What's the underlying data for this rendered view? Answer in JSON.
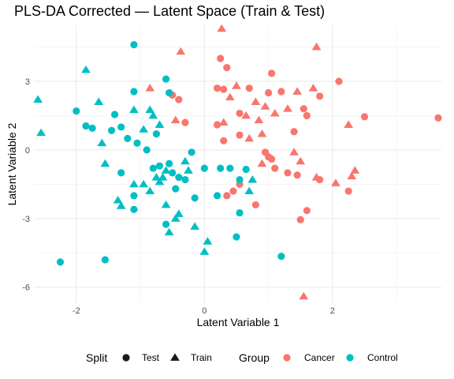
{
  "chart_data": {
    "type": "scatter",
    "title": "PLS-DA Corrected — Latent Space (Train & Test)",
    "xlabel": "Latent Variable 1",
    "ylabel": "Latent Variable 2",
    "xlim": [
      -2.65,
      3.7
    ],
    "ylim": [
      -6.7,
      5.45
    ],
    "x_ticks": [
      -2,
      0,
      2
    ],
    "y_ticks": [
      -6,
      -3,
      0,
      3
    ],
    "grid": true,
    "legend": {
      "position": "bottom",
      "split": {
        "title": "Split",
        "items": [
          {
            "label": "Test",
            "shape": "circle"
          },
          {
            "label": "Train",
            "shape": "triangle"
          }
        ]
      },
      "group": {
        "title": "Group",
        "items": [
          {
            "label": "Cancer",
            "color": "#F8766D"
          },
          {
            "label": "Control",
            "color": "#00BFC4"
          }
        ]
      }
    },
    "colors": {
      "Cancer": "#F8766D",
      "Control": "#00BFC4"
    },
    "points": [
      {
        "x": 0.27,
        "y": 5.3,
        "group": "Cancer",
        "split": "Train"
      },
      {
        "x": -0.37,
        "y": 4.3,
        "group": "Cancer",
        "split": "Train"
      },
      {
        "x": 1.75,
        "y": 4.5,
        "group": "Cancer",
        "split": "Train"
      },
      {
        "x": 0.25,
        "y": 4.0,
        "group": "Cancer",
        "split": "Test"
      },
      {
        "x": 0.35,
        "y": 3.6,
        "group": "Cancer",
        "split": "Test"
      },
      {
        "x": 1.05,
        "y": 3.35,
        "group": "Cancer",
        "split": "Test"
      },
      {
        "x": 2.1,
        "y": 3.0,
        "group": "Cancer",
        "split": "Test"
      },
      {
        "x": -0.85,
        "y": 2.7,
        "group": "Cancer",
        "split": "Train"
      },
      {
        "x": 0.2,
        "y": 2.7,
        "group": "Cancer",
        "split": "Test"
      },
      {
        "x": 0.3,
        "y": 2.65,
        "group": "Cancer",
        "split": "Test"
      },
      {
        "x": 0.5,
        "y": 2.8,
        "group": "Cancer",
        "split": "Train"
      },
      {
        "x": 0.7,
        "y": 2.7,
        "group": "Cancer",
        "split": "Test"
      },
      {
        "x": 1.0,
        "y": 2.5,
        "group": "Cancer",
        "split": "Test"
      },
      {
        "x": 1.2,
        "y": 2.55,
        "group": "Cancer",
        "split": "Test"
      },
      {
        "x": 1.45,
        "y": 2.55,
        "group": "Cancer",
        "split": "Train"
      },
      {
        "x": 1.7,
        "y": 2.7,
        "group": "Cancer",
        "split": "Train"
      },
      {
        "x": 1.8,
        "y": 2.35,
        "group": "Cancer",
        "split": "Test"
      },
      {
        "x": -0.5,
        "y": 2.4,
        "group": "Cancer",
        "split": "Test"
      },
      {
        "x": -0.4,
        "y": 2.2,
        "group": "Cancer",
        "split": "Test"
      },
      {
        "x": 0.4,
        "y": 2.3,
        "group": "Cancer",
        "split": "Train"
      },
      {
        "x": 0.8,
        "y": 2.1,
        "group": "Cancer",
        "split": "Train"
      },
      {
        "x": 0.95,
        "y": 1.9,
        "group": "Cancer",
        "split": "Train"
      },
      {
        "x": 1.1,
        "y": 1.6,
        "group": "Cancer",
        "split": "Train"
      },
      {
        "x": 1.3,
        "y": 1.8,
        "group": "Cancer",
        "split": "Train"
      },
      {
        "x": 1.55,
        "y": 1.8,
        "group": "Cancer",
        "split": "Test"
      },
      {
        "x": 1.6,
        "y": 1.5,
        "group": "Cancer",
        "split": "Test"
      },
      {
        "x": -0.45,
        "y": 1.3,
        "group": "Cancer",
        "split": "Train"
      },
      {
        "x": -0.3,
        "y": 1.2,
        "group": "Cancer",
        "split": "Test"
      },
      {
        "x": 0.2,
        "y": 1.1,
        "group": "Cancer",
        "split": "Test"
      },
      {
        "x": 0.3,
        "y": 1.2,
        "group": "Cancer",
        "split": "Train"
      },
      {
        "x": 0.55,
        "y": 1.6,
        "group": "Cancer",
        "split": "Test"
      },
      {
        "x": 0.65,
        "y": 1.5,
        "group": "Cancer",
        "split": "Train"
      },
      {
        "x": 0.85,
        "y": 1.3,
        "group": "Cancer",
        "split": "Train"
      },
      {
        "x": 1.4,
        "y": 0.8,
        "group": "Cancer",
        "split": "Test"
      },
      {
        "x": 2.25,
        "y": 1.1,
        "group": "Cancer",
        "split": "Train"
      },
      {
        "x": 2.5,
        "y": 1.45,
        "group": "Cancer",
        "split": "Test"
      },
      {
        "x": 3.65,
        "y": 1.4,
        "group": "Cancer",
        "split": "Test"
      },
      {
        "x": 0.3,
        "y": 0.4,
        "group": "Cancer",
        "split": "Test"
      },
      {
        "x": 0.55,
        "y": 0.65,
        "group": "Cancer",
        "split": "Test"
      },
      {
        "x": 0.7,
        "y": 0.5,
        "group": "Cancer",
        "split": "Train"
      },
      {
        "x": 0.9,
        "y": 0.7,
        "group": "Cancer",
        "split": "Train"
      },
      {
        "x": 0.95,
        "y": -0.1,
        "group": "Cancer",
        "split": "Test"
      },
      {
        "x": 1.0,
        "y": -0.3,
        "group": "Cancer",
        "split": "Test"
      },
      {
        "x": 1.05,
        "y": -0.4,
        "group": "Cancer",
        "split": "Test"
      },
      {
        "x": 0.9,
        "y": -0.6,
        "group": "Cancer",
        "split": "Train"
      },
      {
        "x": 1.1,
        "y": -0.8,
        "group": "Cancer",
        "split": "Test"
      },
      {
        "x": 1.4,
        "y": -0.1,
        "group": "Cancer",
        "split": "Train"
      },
      {
        "x": 1.5,
        "y": -0.5,
        "group": "Cancer",
        "split": "Train"
      },
      {
        "x": 1.3,
        "y": -1.0,
        "group": "Cancer",
        "split": "Test"
      },
      {
        "x": 1.45,
        "y": -1.1,
        "group": "Cancer",
        "split": "Test"
      },
      {
        "x": 1.75,
        "y": -1.2,
        "group": "Cancer",
        "split": "Train"
      },
      {
        "x": 1.8,
        "y": -1.3,
        "group": "Cancer",
        "split": "Test"
      },
      {
        "x": 0.55,
        "y": -1.5,
        "group": "Cancer",
        "split": "Test"
      },
      {
        "x": 0.35,
        "y": -2.0,
        "group": "Cancer",
        "split": "Test"
      },
      {
        "x": 0.45,
        "y": -1.8,
        "group": "Cancer",
        "split": "Test"
      },
      {
        "x": 0.8,
        "y": -2.4,
        "group": "Cancer",
        "split": "Test"
      },
      {
        "x": 2.05,
        "y": -1.45,
        "group": "Cancer",
        "split": "Train"
      },
      {
        "x": 2.25,
        "y": -1.8,
        "group": "Cancer",
        "split": "Test"
      },
      {
        "x": 2.3,
        "y": -1.15,
        "group": "Cancer",
        "split": "Train"
      },
      {
        "x": 2.35,
        "y": -0.9,
        "group": "Cancer",
        "split": "Train"
      },
      {
        "x": 1.6,
        "y": -2.65,
        "group": "Cancer",
        "split": "Test"
      },
      {
        "x": 1.5,
        "y": -3.05,
        "group": "Cancer",
        "split": "Test"
      },
      {
        "x": 1.55,
        "y": -6.4,
        "group": "Cancer",
        "split": "Train"
      },
      {
        "x": -1.1,
        "y": 4.6,
        "group": "Control",
        "split": "Test"
      },
      {
        "x": -1.85,
        "y": 3.5,
        "group": "Control",
        "split": "Train"
      },
      {
        "x": -2.6,
        "y": 2.2,
        "group": "Control",
        "split": "Train"
      },
      {
        "x": -2.55,
        "y": 0.75,
        "group": "Control",
        "split": "Train"
      },
      {
        "x": -1.65,
        "y": 2.1,
        "group": "Control",
        "split": "Train"
      },
      {
        "x": -2.0,
        "y": 1.7,
        "group": "Control",
        "split": "Test"
      },
      {
        "x": -1.85,
        "y": 1.05,
        "group": "Control",
        "split": "Test"
      },
      {
        "x": -1.75,
        "y": 0.95,
        "group": "Control",
        "split": "Test"
      },
      {
        "x": -1.45,
        "y": 0.85,
        "group": "Control",
        "split": "Test"
      },
      {
        "x": -1.4,
        "y": 1.55,
        "group": "Control",
        "split": "Test"
      },
      {
        "x": -1.1,
        "y": 2.55,
        "group": "Control",
        "split": "Test"
      },
      {
        "x": -1.1,
        "y": 1.75,
        "group": "Control",
        "split": "Train"
      },
      {
        "x": -0.85,
        "y": 1.75,
        "group": "Control",
        "split": "Train"
      },
      {
        "x": -0.8,
        "y": 1.5,
        "group": "Control",
        "split": "Train"
      },
      {
        "x": -0.6,
        "y": 3.1,
        "group": "Control",
        "split": "Test"
      },
      {
        "x": -0.55,
        "y": 2.5,
        "group": "Control",
        "split": "Test"
      },
      {
        "x": -1.3,
        "y": 1.0,
        "group": "Control",
        "split": "Test"
      },
      {
        "x": -1.2,
        "y": 0.5,
        "group": "Control",
        "split": "Test"
      },
      {
        "x": -1.05,
        "y": 0.3,
        "group": "Control",
        "split": "Test"
      },
      {
        "x": -0.95,
        "y": 0.9,
        "group": "Control",
        "split": "Train"
      },
      {
        "x": -0.75,
        "y": 0.7,
        "group": "Control",
        "split": "Test"
      },
      {
        "x": -0.7,
        "y": 1.1,
        "group": "Control",
        "split": "Train"
      },
      {
        "x": -0.9,
        "y": 0.0,
        "group": "Control",
        "split": "Test"
      },
      {
        "x": -1.6,
        "y": 0.3,
        "group": "Control",
        "split": "Train"
      },
      {
        "x": -1.55,
        "y": -0.6,
        "group": "Control",
        "split": "Train"
      },
      {
        "x": -1.3,
        "y": -1.0,
        "group": "Control",
        "split": "Test"
      },
      {
        "x": -1.1,
        "y": -1.5,
        "group": "Control",
        "split": "Train"
      },
      {
        "x": -0.95,
        "y": -1.5,
        "group": "Control",
        "split": "Train"
      },
      {
        "x": -0.85,
        "y": -1.8,
        "group": "Control",
        "split": "Train"
      },
      {
        "x": -0.8,
        "y": -0.8,
        "group": "Control",
        "split": "Test"
      },
      {
        "x": -0.75,
        "y": -1.2,
        "group": "Control",
        "split": "Train"
      },
      {
        "x": -0.7,
        "y": -1.4,
        "group": "Control",
        "split": "Train"
      },
      {
        "x": -0.7,
        "y": -0.7,
        "group": "Control",
        "split": "Test"
      },
      {
        "x": -0.65,
        "y": -1.2,
        "group": "Control",
        "split": "Train"
      },
      {
        "x": -0.6,
        "y": -0.9,
        "group": "Control",
        "split": "Train"
      },
      {
        "x": -0.55,
        "y": -0.6,
        "group": "Control",
        "split": "Test"
      },
      {
        "x": -0.5,
        "y": -1.0,
        "group": "Control",
        "split": "Test"
      },
      {
        "x": -0.45,
        "y": -1.7,
        "group": "Control",
        "split": "Test"
      },
      {
        "x": -0.4,
        "y": -1.2,
        "group": "Control",
        "split": "Test"
      },
      {
        "x": -0.3,
        "y": -0.5,
        "group": "Control",
        "split": "Train"
      },
      {
        "x": -0.3,
        "y": -1.3,
        "group": "Control",
        "split": "Test"
      },
      {
        "x": -0.25,
        "y": -0.9,
        "group": "Control",
        "split": "Train"
      },
      {
        "x": -0.2,
        "y": -0.1,
        "group": "Control",
        "split": "Test"
      },
      {
        "x": 0.0,
        "y": -0.8,
        "group": "Control",
        "split": "Test"
      },
      {
        "x": 0.25,
        "y": -0.8,
        "group": "Control",
        "split": "Test"
      },
      {
        "x": 0.4,
        "y": -0.8,
        "group": "Control",
        "split": "Test"
      },
      {
        "x": 0.65,
        "y": -0.85,
        "group": "Control",
        "split": "Test"
      },
      {
        "x": 0.55,
        "y": -1.3,
        "group": "Control",
        "split": "Test"
      },
      {
        "x": 0.75,
        "y": -1.3,
        "group": "Control",
        "split": "Train"
      },
      {
        "x": 0.7,
        "y": -1.8,
        "group": "Control",
        "split": "Train"
      },
      {
        "x": -0.15,
        "y": -2.1,
        "group": "Control",
        "split": "Test"
      },
      {
        "x": 0.2,
        "y": -2.0,
        "group": "Control",
        "split": "Test"
      },
      {
        "x": -1.35,
        "y": -2.2,
        "group": "Control",
        "split": "Train"
      },
      {
        "x": -1.3,
        "y": -2.45,
        "group": "Control",
        "split": "Train"
      },
      {
        "x": -1.1,
        "y": -2.0,
        "group": "Control",
        "split": "Test"
      },
      {
        "x": -1.1,
        "y": -2.6,
        "group": "Control",
        "split": "Test"
      },
      {
        "x": -0.6,
        "y": -2.4,
        "group": "Control",
        "split": "Train"
      },
      {
        "x": -0.6,
        "y": -3.25,
        "group": "Control",
        "split": "Test"
      },
      {
        "x": -0.45,
        "y": -3.0,
        "group": "Control",
        "split": "Train"
      },
      {
        "x": -0.4,
        "y": -2.8,
        "group": "Control",
        "split": "Train"
      },
      {
        "x": -0.55,
        "y": -3.6,
        "group": "Control",
        "split": "Train"
      },
      {
        "x": -0.15,
        "y": -3.35,
        "group": "Control",
        "split": "Train"
      },
      {
        "x": 0.55,
        "y": -2.75,
        "group": "Control",
        "split": "Test"
      },
      {
        "x": 0.05,
        "y": -4.0,
        "group": "Control",
        "split": "Train"
      },
      {
        "x": 0.0,
        "y": -4.45,
        "group": "Control",
        "split": "Train"
      },
      {
        "x": 0.5,
        "y": -3.8,
        "group": "Control",
        "split": "Test"
      },
      {
        "x": 1.2,
        "y": -4.65,
        "group": "Control",
        "split": "Test"
      },
      {
        "x": -2.25,
        "y": -4.9,
        "group": "Control",
        "split": "Test"
      },
      {
        "x": -1.55,
        "y": -4.8,
        "group": "Control",
        "split": "Test"
      }
    ]
  }
}
